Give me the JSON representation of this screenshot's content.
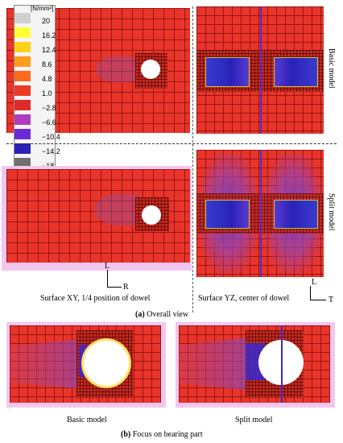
{
  "legend": {
    "unit": "[N/mm²]",
    "values": [
      "20",
      "16.2",
      "12.4",
      "8.6",
      "4.8",
      "1.0",
      "−2.8",
      "−6.6",
      "−10.4",
      "−14.2",
      "−18"
    ],
    "colors": [
      "#d0d0d0",
      "#ffff33",
      "#ffd21a",
      "#ff9c1a",
      "#ff6a1a",
      "#ee3a24",
      "#e02a2a",
      "#b03ac0",
      "#6a2ad8",
      "#2a22b8",
      "#707070"
    ]
  },
  "labels": {
    "basic_model": "Basic model",
    "split_model": "Split model",
    "surface_xy": "Surface XY, 1/4 position of dowel",
    "surface_yz": "Surface YZ, center of dowel",
    "overall_prefix": "(a)",
    "overall_text": " Overall view",
    "focus_prefix": "(b)",
    "focus_text": " Focus on bearing part",
    "bottom_basic": "Basic model",
    "bottom_split": "Split model",
    "axis_L1": "L",
    "axis_R": "R",
    "axis_L2": "L",
    "axis_T": "T"
  }
}
